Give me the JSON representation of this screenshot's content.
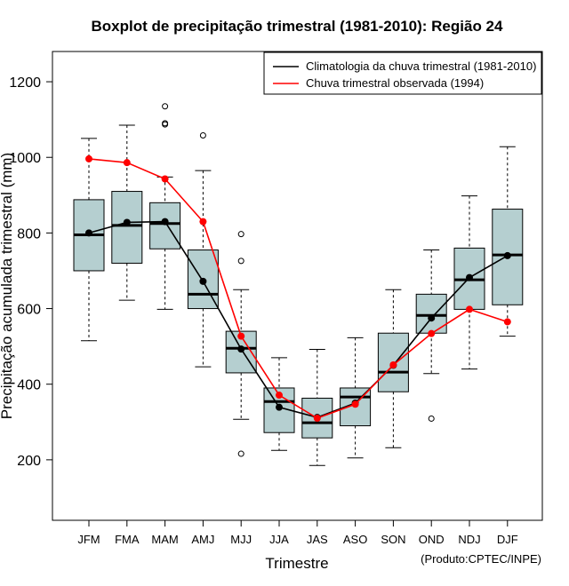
{
  "chart_data": {
    "type": "boxplot",
    "title": "Boxplot de precipitação trimestral (1981-2010): Região 24",
    "xlabel": "Trimestre",
    "ylabel": "Precipitação acumulada trimestral (mm)",
    "credit": "(Produto:CPTEC/INPE)",
    "ylim": [
      40,
      1280
    ],
    "yticks": [
      200,
      400,
      600,
      800,
      1000,
      1200
    ],
    "categories": [
      "JFM",
      "FMA",
      "MAM",
      "AMJ",
      "MJJ",
      "JJA",
      "JAS",
      "ASO",
      "SON",
      "OND",
      "NDJ",
      "DJF"
    ],
    "boxes": [
      {
        "whisker_low": 515,
        "q1": 700,
        "median": 795,
        "q3": 888,
        "whisker_high": 1050,
        "outliers": []
      },
      {
        "whisker_low": 622,
        "q1": 720,
        "median": 820,
        "q3": 910,
        "whisker_high": 1085,
        "outliers": []
      },
      {
        "whisker_low": 598,
        "q1": 758,
        "median": 825,
        "q3": 880,
        "whisker_high": 948,
        "outliers": [
          1135,
          1090,
          1087
        ]
      },
      {
        "whisker_low": 446,
        "q1": 600,
        "median": 638,
        "q3": 755,
        "whisker_high": 965,
        "outliers": [
          1058
        ]
      },
      {
        "whisker_low": 307,
        "q1": 430,
        "median": 495,
        "q3": 540,
        "whisker_high": 650,
        "outliers": [
          797,
          726,
          216
        ]
      },
      {
        "whisker_low": 225,
        "q1": 272,
        "median": 354,
        "q3": 390,
        "whisker_high": 470,
        "outliers": []
      },
      {
        "whisker_low": 185,
        "q1": 258,
        "median": 298,
        "q3": 363,
        "whisker_high": 492,
        "outliers": []
      },
      {
        "whisker_low": 205,
        "q1": 290,
        "median": 366,
        "q3": 390,
        "whisker_high": 523,
        "outliers": []
      },
      {
        "whisker_low": 232,
        "q1": 380,
        "median": 432,
        "q3": 535,
        "whisker_high": 650,
        "outliers": []
      },
      {
        "whisker_low": 428,
        "q1": 535,
        "median": 582,
        "q3": 638,
        "whisker_high": 755,
        "outliers": [
          309
        ]
      },
      {
        "whisker_low": 440,
        "q1": 598,
        "median": 676,
        "q3": 760,
        "whisker_high": 898,
        "outliers": []
      },
      {
        "whisker_low": 527,
        "q1": 610,
        "median": 742,
        "q3": 863,
        "whisker_high": 1028,
        "outliers": []
      }
    ],
    "series": [
      {
        "name": "Climatologia da chuva trimestral (1981-2010)",
        "color": "#000000",
        "values": [
          800,
          828,
          830,
          672,
          493,
          339,
          312,
          350,
          450,
          575,
          682,
          740
        ]
      },
      {
        "name": "Chuva trimestral observada (1994)",
        "color": "#ff0000",
        "values": [
          996,
          986,
          943,
          830,
          527,
          371,
          310,
          347,
          451,
          534,
          598,
          565
        ]
      }
    ],
    "box_fill": "#b5cfd0",
    "legend_position": "top-right"
  }
}
